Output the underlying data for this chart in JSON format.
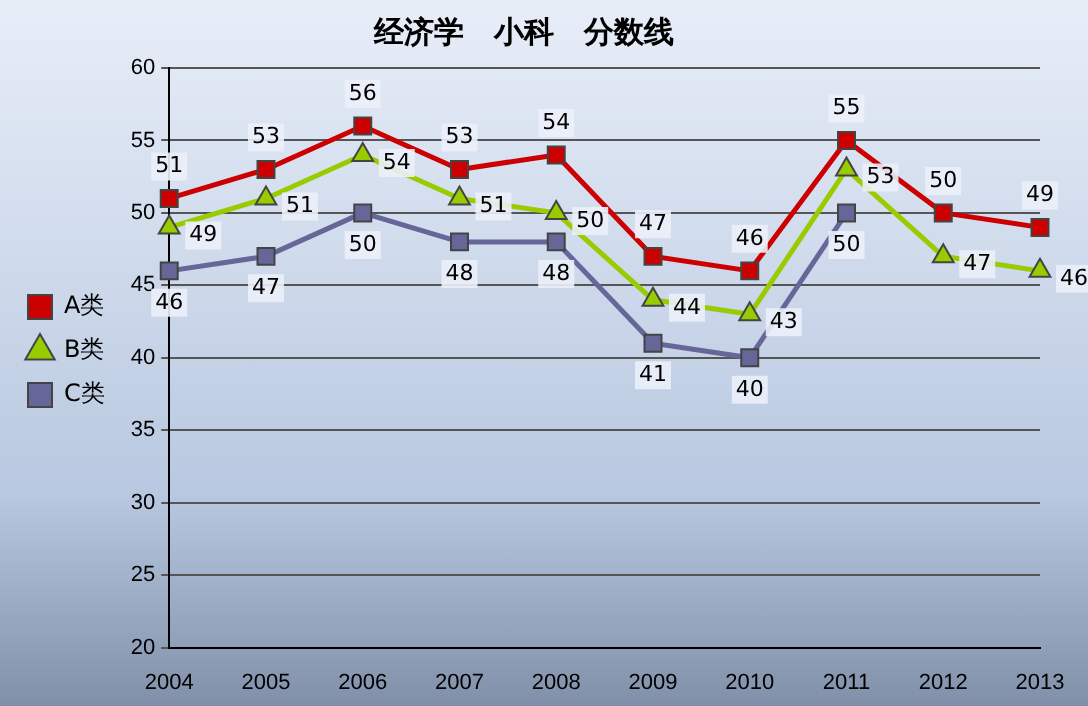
{
  "chart_data": {
    "type": "line",
    "title": "经济学　小科　分数线",
    "categories": [
      "2004",
      "2005",
      "2006",
      "2007",
      "2008",
      "2009",
      "2010",
      "2011",
      "2012",
      "2013"
    ],
    "series": [
      {
        "name": "A类",
        "color": "#cc0000",
        "marker": "square",
        "values": [
          51,
          53,
          56,
          53,
          54,
          47,
          46,
          55,
          50,
          49
        ]
      },
      {
        "name": "B类",
        "color": "#99cc00",
        "marker": "triangle",
        "values": [
          49,
          51,
          54,
          51,
          50,
          44,
          43,
          53,
          47,
          46
        ]
      },
      {
        "name": "C类",
        "color": "#666699",
        "marker": "square",
        "values": [
          46,
          47,
          50,
          48,
          48,
          41,
          40,
          50,
          null,
          null
        ]
      }
    ],
    "ylim": [
      20,
      60
    ],
    "yticks": [
      20,
      25,
      30,
      35,
      40,
      45,
      50,
      55,
      60
    ],
    "grid": "y",
    "legend": "left",
    "data_labels": true
  }
}
